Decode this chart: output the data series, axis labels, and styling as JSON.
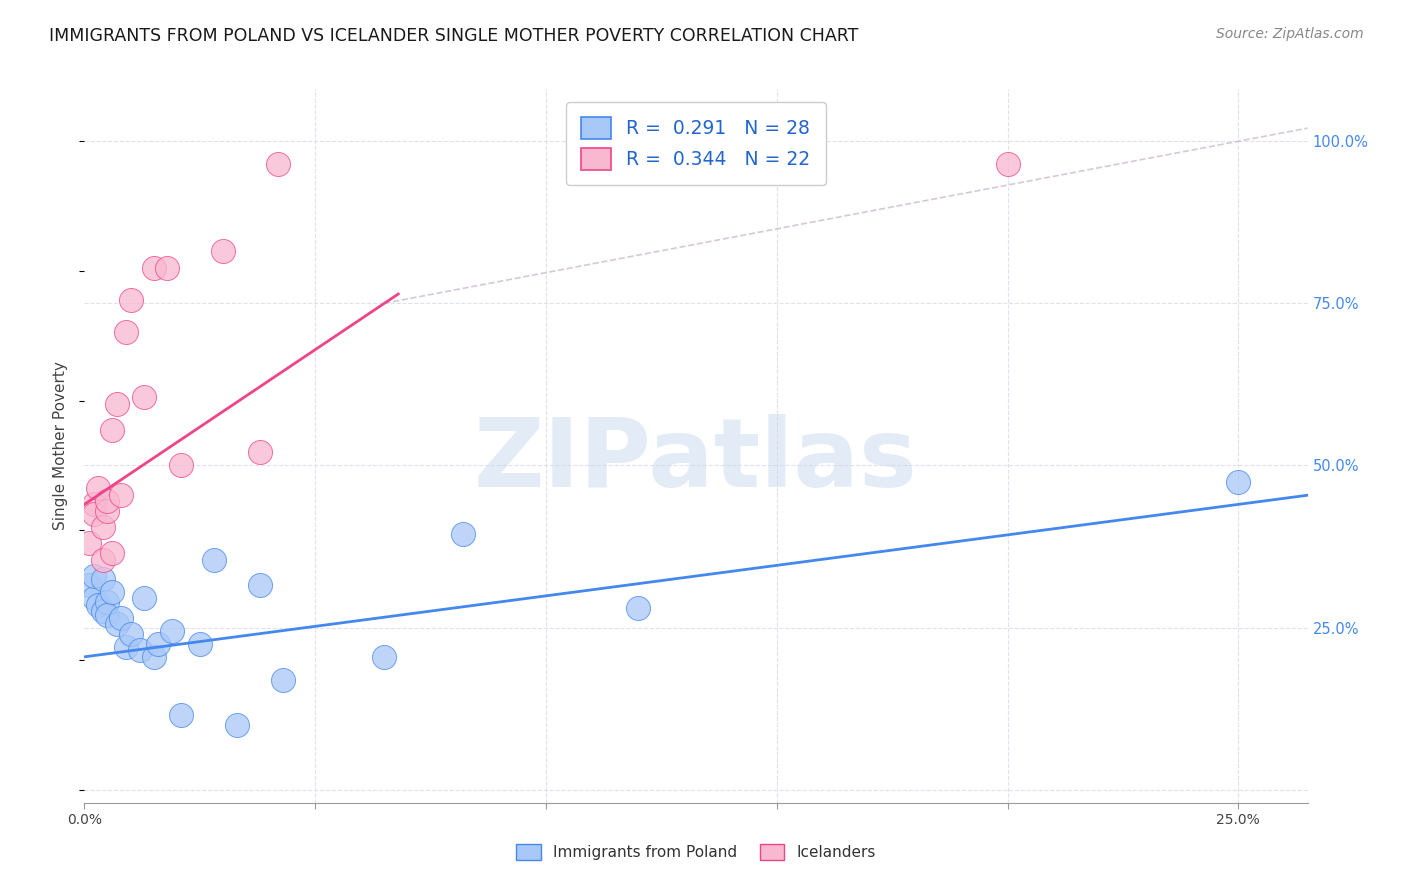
{
  "title": "IMMIGRANTS FROM POLAND VS ICELANDER SINGLE MOTHER POVERTY CORRELATION CHART",
  "source": "Source: ZipAtlas.com",
  "ylabel": "Single Mother Poverty",
  "xlim": [
    0.0,
    0.265
  ],
  "ylim": [
    -0.02,
    1.08
  ],
  "x_ticks": [
    0.0,
    0.05,
    0.1,
    0.15,
    0.2,
    0.25
  ],
  "x_tick_labels": [
    "0.0%",
    "",
    "",
    "",
    "",
    "25.0%"
  ],
  "y_ticks": [
    0.0,
    0.25,
    0.5,
    0.75,
    1.0
  ],
  "y_tick_labels": [
    "",
    "25.0%",
    "50.0%",
    "75.0%",
    "100.0%"
  ],
  "poland_x": [
    0.001,
    0.002,
    0.002,
    0.003,
    0.004,
    0.004,
    0.005,
    0.005,
    0.006,
    0.007,
    0.008,
    0.009,
    0.01,
    0.012,
    0.013,
    0.015,
    0.016,
    0.019,
    0.021,
    0.025,
    0.028,
    0.033,
    0.038,
    0.043,
    0.065,
    0.082,
    0.12,
    0.25
  ],
  "poland_y": [
    0.315,
    0.295,
    0.33,
    0.285,
    0.275,
    0.325,
    0.29,
    0.27,
    0.305,
    0.255,
    0.265,
    0.22,
    0.24,
    0.215,
    0.295,
    0.205,
    0.225,
    0.245,
    0.115,
    0.225,
    0.355,
    0.1,
    0.315,
    0.17,
    0.205,
    0.395,
    0.28,
    0.475
  ],
  "iceland_x": [
    0.001,
    0.002,
    0.002,
    0.003,
    0.004,
    0.004,
    0.005,
    0.005,
    0.006,
    0.006,
    0.007,
    0.008,
    0.009,
    0.01,
    0.013,
    0.015,
    0.018,
    0.021,
    0.03,
    0.038,
    0.042,
    0.2
  ],
  "iceland_y": [
    0.38,
    0.44,
    0.425,
    0.465,
    0.405,
    0.355,
    0.43,
    0.445,
    0.365,
    0.555,
    0.595,
    0.455,
    0.705,
    0.755,
    0.605,
    0.805,
    0.805,
    0.5,
    0.83,
    0.52,
    0.965,
    0.965
  ],
  "poland_color": "#a8c8f8",
  "iceland_color": "#f8b8d0",
  "poland_R": 0.291,
  "poland_N": 28,
  "iceland_R": 0.344,
  "iceland_N": 22,
  "trend_color_poland": "#4488ee",
  "trend_color_iceland": "#ee4488",
  "trend_intercept_poland": 0.205,
  "trend_slope_poland": 0.92,
  "trend_intercept_iceland": 0.44,
  "trend_slope_iceland": 1.2,
  "diag_color": "#ccbbcc",
  "watermark_text": "ZIPatlas",
  "watermark_color": "#c8d8f0",
  "legend_text_color": "#2266cc",
  "background_color": "#ffffff",
  "grid_color": "#e0e0ee",
  "right_tick_color": "#4488ee"
}
